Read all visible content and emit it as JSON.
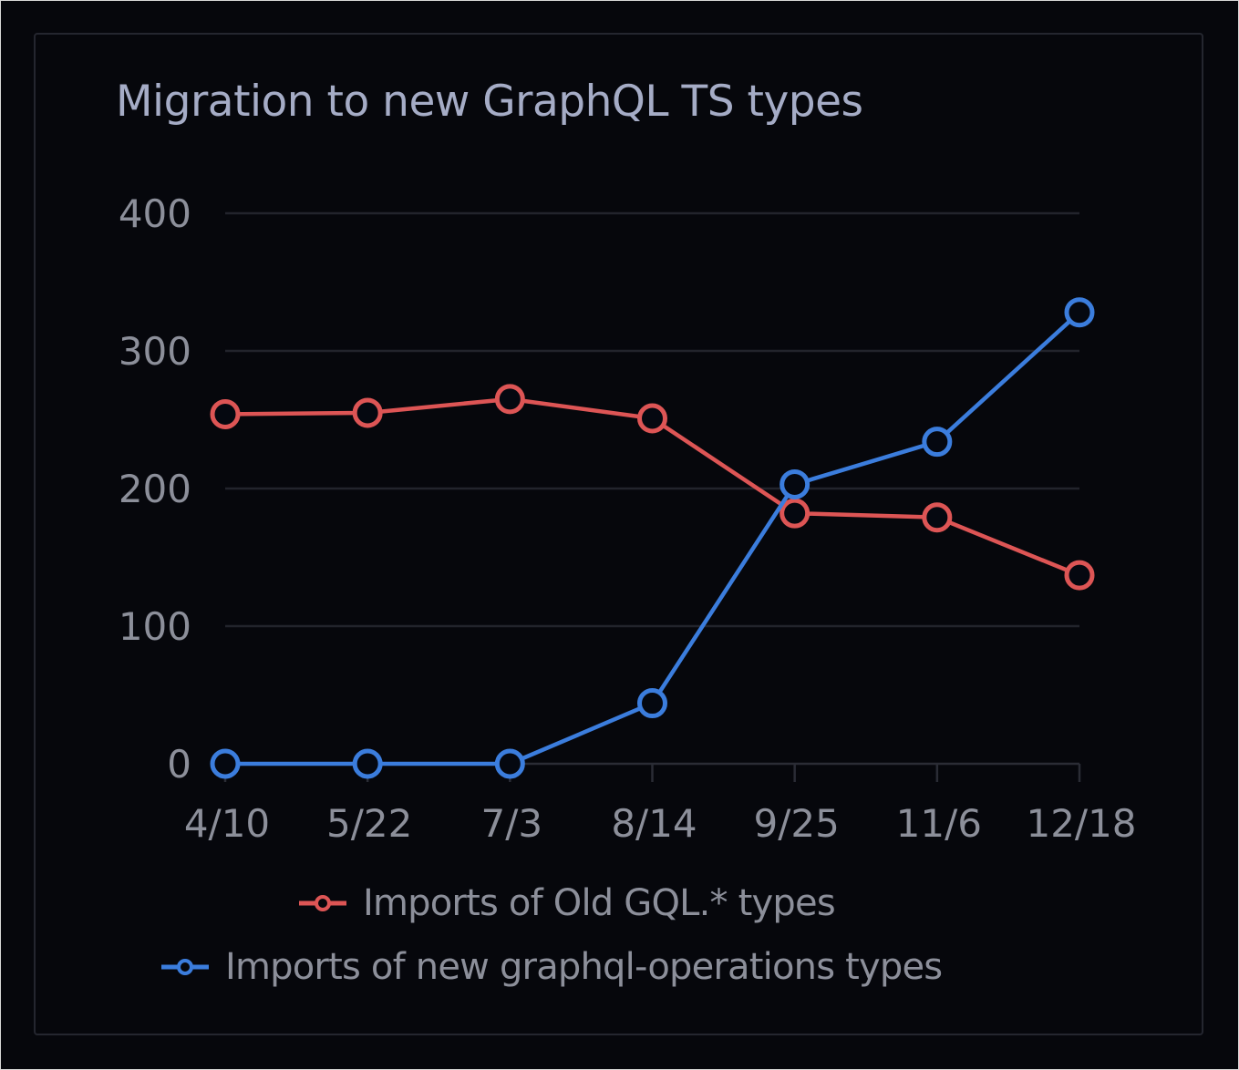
{
  "title": "Migration to new GraphQL TS types",
  "colors": {
    "background": "#06070c",
    "card_border": "#24262f",
    "gridline": "#22242c",
    "title": "#a5acc6",
    "tick_label": "#8c8f9a",
    "old_series": "#dd5555",
    "new_series": "#3b7ddd"
  },
  "legend": {
    "items": [
      {
        "label": "Imports of Old GQL.* types",
        "color": "#dd5555",
        "icon": "line-circle-marker-icon"
      },
      {
        "label": "Imports of new graphql-operations types",
        "color": "#3b7ddd",
        "icon": "line-circle-marker-icon"
      }
    ]
  },
  "chart_data": {
    "type": "line",
    "title": "Migration to new GraphQL TS types",
    "xlabel": "",
    "ylabel": "",
    "categories": [
      "4/10",
      "5/22",
      "7/3",
      "8/14",
      "9/25",
      "11/6",
      "12/18"
    ],
    "yticks": [
      0,
      100,
      200,
      300,
      400
    ],
    "ylim": [
      0,
      400
    ],
    "grid": true,
    "legend_position": "bottom",
    "series": [
      {
        "name": "Imports of Old GQL.* types",
        "color": "#dd5555",
        "values": [
          254,
          255,
          265,
          251,
          182,
          179,
          137
        ]
      },
      {
        "name": "Imports of new graphql-operations types",
        "color": "#3b7ddd",
        "values": [
          0,
          0,
          0,
          44,
          203,
          234,
          328
        ]
      }
    ]
  }
}
